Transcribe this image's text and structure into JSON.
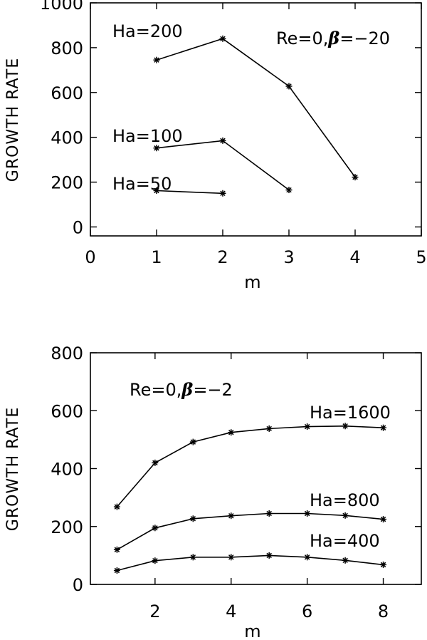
{
  "chart_data": [
    {
      "type": "line",
      "xlabel": "m",
      "ylabel": "GROWTH RATE",
      "xlim": [
        0,
        5
      ],
      "ylim": [
        -40,
        1000
      ],
      "xticks": [
        "0",
        "1",
        "2",
        "3",
        "4",
        "5"
      ],
      "yticks": [
        "0",
        "200",
        "400",
        "600",
        "800",
        "1000"
      ],
      "grid": false,
      "annotation": {
        "re": "Re=0,",
        "beta": "β",
        "rest": "=−20"
      },
      "series": [
        {
          "name": "Ha=200",
          "x": [
            1,
            2,
            3,
            4
          ],
          "values": [
            745,
            840,
            628,
            222
          ]
        },
        {
          "name": "Ha=100",
          "x": [
            1,
            2,
            3
          ],
          "values": [
            352,
            385,
            165
          ]
        },
        {
          "name": "Ha=50",
          "x": [
            1,
            2
          ],
          "values": [
            162,
            150
          ]
        }
      ]
    },
    {
      "type": "line",
      "xlabel": "m",
      "ylabel": "GROWTH RATE",
      "xlim": [
        0.3,
        9
      ],
      "ylim": [
        0,
        800
      ],
      "xticks": [
        "2",
        "4",
        "6",
        "8"
      ],
      "yticks": [
        "0",
        "200",
        "400",
        "600",
        "800"
      ],
      "grid": false,
      "annotation": {
        "re": "Re=0,",
        "beta": "β",
        "rest": "=−2"
      },
      "series": [
        {
          "name": "Ha=1600",
          "x": [
            1,
            2,
            3,
            4,
            5,
            6,
            7,
            8
          ],
          "values": [
            268,
            420,
            492,
            525,
            538,
            545,
            547,
            541
          ]
        },
        {
          "name": "Ha=800",
          "x": [
            1,
            2,
            3,
            4,
            5,
            6,
            7,
            8
          ],
          "values": [
            120,
            195,
            227,
            237,
            245,
            245,
            238,
            225
          ]
        },
        {
          "name": "Ha=400",
          "x": [
            1,
            2,
            3,
            4,
            5,
            6,
            7,
            8
          ],
          "values": [
            48,
            82,
            94,
            94,
            100,
            94,
            83,
            68
          ]
        }
      ]
    }
  ]
}
